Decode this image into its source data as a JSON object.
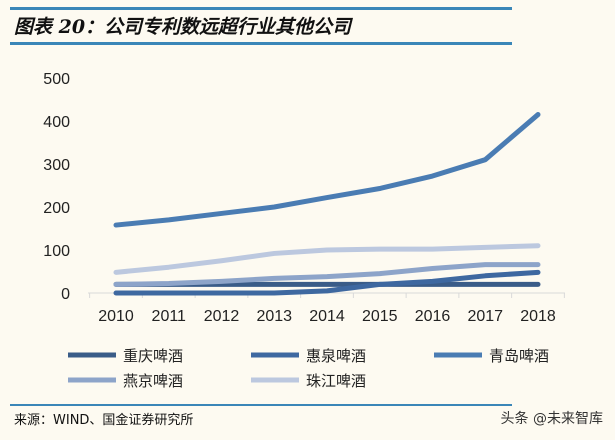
{
  "title": "图表 20：公司专利数远超行业其他公司",
  "source": "来源：WIND、国金证券研究所",
  "watermark": "头条 @未来智库",
  "chart_data": {
    "type": "line",
    "categories": [
      "2010",
      "2011",
      "2012",
      "2013",
      "2014",
      "2015",
      "2016",
      "2017",
      "2018"
    ],
    "ylim": [
      0,
      500
    ],
    "yticks": [
      0,
      100,
      200,
      300,
      400,
      500
    ],
    "grid": false,
    "legend": "bottom",
    "series": [
      {
        "name": "重庆啤酒",
        "color": "#3a5c88",
        "values": [
          20,
          20,
          20,
          20,
          20,
          20,
          20,
          20,
          20
        ]
      },
      {
        "name": "惠泉啤酒",
        "color": "#3e68a0",
        "values": [
          0,
          0,
          0,
          0,
          5,
          20,
          27,
          40,
          48
        ]
      },
      {
        "name": "青岛啤酒",
        "color": "#4a7cb3",
        "values": [
          158,
          170,
          185,
          200,
          222,
          243,
          272,
          310,
          415
        ]
      },
      {
        "name": "燕京啤酒",
        "color": "#8da4c9",
        "values": [
          20,
          22,
          27,
          34,
          38,
          45,
          57,
          66,
          66
        ]
      },
      {
        "name": "珠江啤酒",
        "color": "#bcc8df",
        "values": [
          48,
          60,
          75,
          92,
          100,
          102,
          102,
          106,
          110
        ]
      }
    ]
  }
}
